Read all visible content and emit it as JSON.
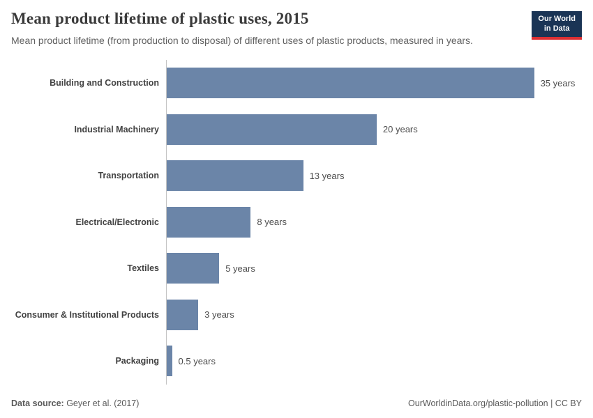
{
  "header": {
    "title": "Mean product lifetime of plastic uses, 2015",
    "subtitle": "Mean product lifetime (from production to disposal) of different uses of plastic products, measured in years.",
    "logo": {
      "line1": "Our World",
      "line2": "in Data",
      "bg_color": "#1a3455",
      "accent_color": "#dc2f33"
    }
  },
  "chart_data": {
    "type": "bar",
    "orientation": "horizontal",
    "title": "Mean product lifetime of plastic uses, 2015",
    "xlabel": "",
    "ylabel": "",
    "categories": [
      "Building and Construction",
      "Industrial Machinery",
      "Transportation",
      "Electrical/Electronic",
      "Textiles",
      "Consumer & Institutional Products",
      "Packaging"
    ],
    "values": [
      35,
      20,
      13,
      8,
      5,
      3,
      0.5
    ],
    "value_labels": [
      "35 years",
      "20 years",
      "13 years",
      "8 years",
      "5 years",
      "3 years",
      "0.5 years"
    ],
    "unit": "years",
    "xlim": [
      0,
      35
    ],
    "bar_color": "#6b85a8",
    "grid": false,
    "legend": "none"
  },
  "footer": {
    "source_label": "Data source:",
    "source_value": " Geyer et al. (2017)",
    "right_text": "OurWorldinData.org/plastic-pollution | CC BY"
  }
}
